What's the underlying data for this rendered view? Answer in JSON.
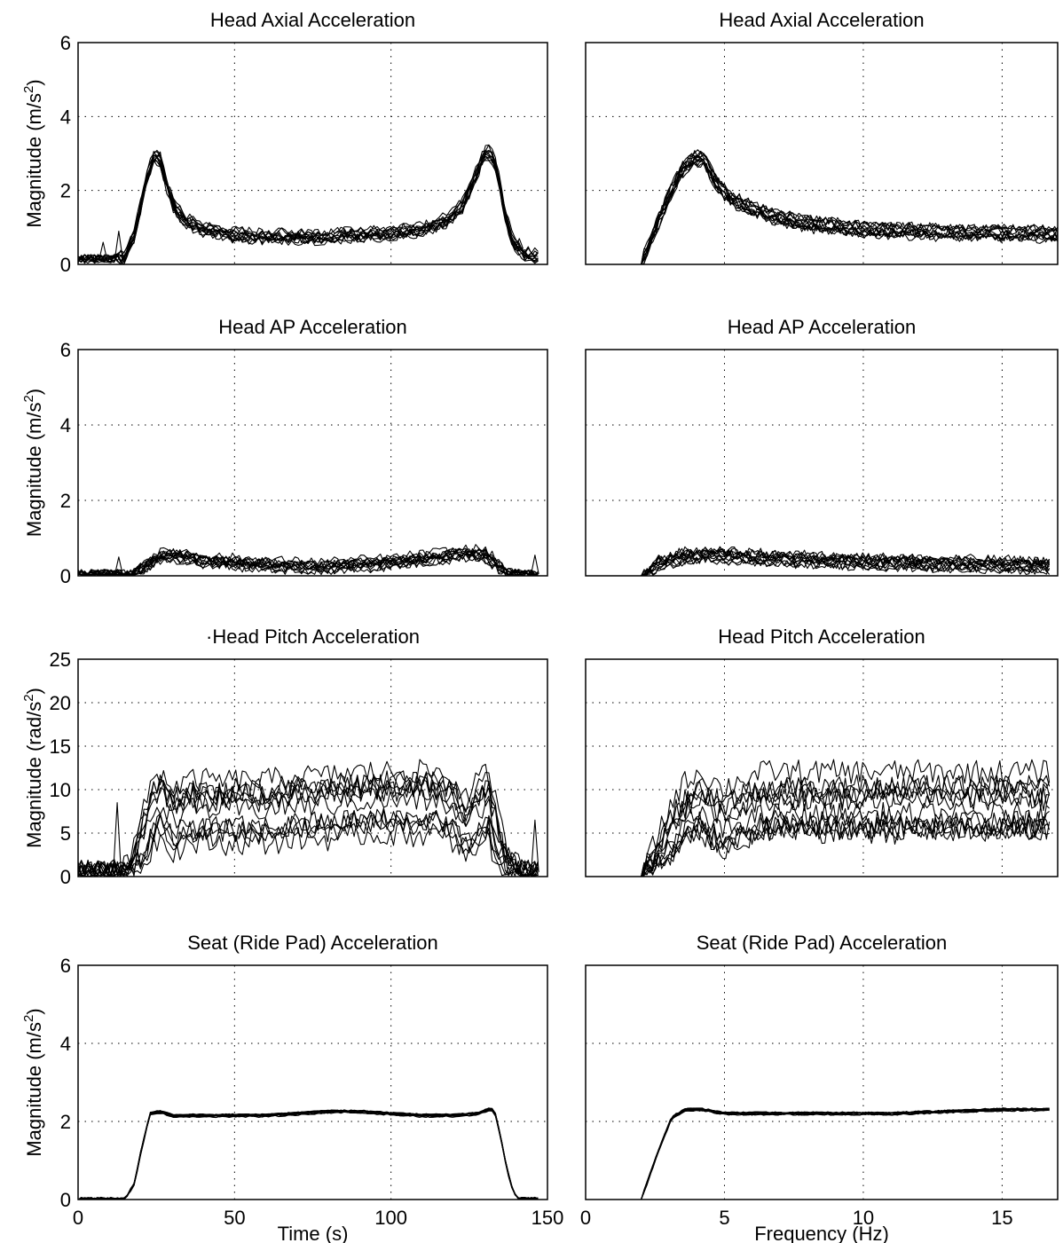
{
  "chart_data": [
    {
      "type": "line",
      "title": "Head Axial Acceleration",
      "ylabel": "Magnitude (m/s",
      "ylabel_sup": "2",
      "ylabel_tail": ")",
      "xlabel": "",
      "xlim": [
        0,
        150
      ],
      "ylim": [
        0,
        6
      ],
      "xticks": [
        0,
        50,
        100,
        150
      ],
      "yticks": [
        0,
        2,
        4,
        6
      ],
      "xtick_labels": [
        "",
        "",
        "",
        ""
      ],
      "ytick_labels": [
        "0",
        "2",
        "4",
        "6"
      ],
      "grid": true,
      "n_traces": 12,
      "x": [
        0,
        5,
        10,
        15,
        18,
        21,
        24,
        26,
        28,
        31,
        35,
        40,
        50,
        60,
        70,
        80,
        90,
        100,
        110,
        118,
        123,
        127,
        130,
        132,
        134,
        136,
        139,
        143,
        147
      ],
      "values": [
        0.15,
        0.15,
        0.15,
        0.2,
        0.8,
        2.0,
        2.9,
        2.9,
        2.2,
        1.5,
        1.15,
        0.95,
        0.8,
        0.75,
        0.75,
        0.75,
        0.8,
        0.85,
        0.95,
        1.2,
        1.6,
        2.4,
        3.0,
        3.0,
        2.5,
        1.5,
        0.6,
        0.25,
        0.2
      ],
      "spikes": [
        {
          "x": 8,
          "y": 0.6
        },
        {
          "x": 13,
          "y": 0.9
        },
        {
          "x": 141,
          "y": 0.7
        }
      ]
    },
    {
      "type": "line",
      "title": "Head Axial Acceleration",
      "ylabel": "",
      "xlabel": "",
      "xlim": [
        0,
        17
      ],
      "ylim": [
        0,
        6
      ],
      "xticks": [
        0,
        5,
        10,
        15
      ],
      "yticks": [
        0,
        2,
        4,
        6
      ],
      "xtick_labels": [
        "",
        "",
        "",
        ""
      ],
      "ytick_labels": [
        "",
        "",
        "",
        ""
      ],
      "grid": true,
      "n_traces": 12,
      "x": [
        2,
        2.8,
        3.4,
        3.9,
        4.3,
        4.7,
        5.2,
        6,
        7,
        8,
        10,
        12,
        14,
        16,
        17
      ],
      "values": [
        0,
        1.5,
        2.5,
        2.9,
        2.8,
        2.2,
        1.8,
        1.5,
        1.25,
        1.1,
        0.95,
        0.9,
        0.85,
        0.85,
        0.8
      ]
    },
    {
      "type": "line",
      "title": "Head AP Acceleration",
      "ylabel": "Magnitude (m/s",
      "ylabel_sup": "2",
      "ylabel_tail": ")",
      "xlabel": "",
      "xlim": [
        0,
        150
      ],
      "ylim": [
        0,
        6
      ],
      "xticks": [
        0,
        50,
        100,
        150
      ],
      "yticks": [
        0,
        2,
        4,
        6
      ],
      "xtick_labels": [
        "",
        "",
        "",
        ""
      ],
      "ytick_labels": [
        "0",
        "2",
        "4",
        "6"
      ],
      "grid": true,
      "n_traces": 12,
      "x": [
        0,
        10,
        17,
        21,
        25,
        30,
        35,
        40,
        50,
        60,
        70,
        80,
        90,
        100,
        110,
        120,
        126,
        130,
        133,
        137,
        142,
        147
      ],
      "values": [
        0.05,
        0.05,
        0.05,
        0.25,
        0.45,
        0.55,
        0.5,
        0.4,
        0.35,
        0.3,
        0.25,
        0.25,
        0.3,
        0.35,
        0.45,
        0.55,
        0.6,
        0.55,
        0.35,
        0.1,
        0.05,
        0.05
      ],
      "spikes": [
        {
          "x": 13,
          "y": 0.5
        },
        {
          "x": 146,
          "y": 0.55
        }
      ]
    },
    {
      "type": "line",
      "title": "Head AP Acceleration",
      "ylabel": "",
      "xlabel": "",
      "xlim": [
        0,
        17
      ],
      "ylim": [
        0,
        6
      ],
      "xticks": [
        0,
        5,
        10,
        15
      ],
      "yticks": [
        0,
        2,
        4,
        6
      ],
      "xtick_labels": [
        "",
        "",
        "",
        ""
      ],
      "ytick_labels": [
        "",
        "",
        "",
        ""
      ],
      "grid": true,
      "n_traces": 12,
      "x": [
        2,
        2.6,
        3.2,
        3.8,
        4.5,
        5.5,
        7,
        9,
        11,
        13,
        15,
        16.7
      ],
      "values": [
        0,
        0.3,
        0.45,
        0.55,
        0.55,
        0.5,
        0.45,
        0.4,
        0.35,
        0.32,
        0.3,
        0.25
      ]
    },
    {
      "type": "line",
      "title": "·Head Pitch Acceleration",
      "ylabel": "Magnitude (rad/s",
      "ylabel_sup": "2",
      "ylabel_tail": ")",
      "xlabel": "",
      "xlim": [
        0,
        150
      ],
      "ylim": [
        0,
        25
      ],
      "xticks": [
        0,
        50,
        100,
        150
      ],
      "yticks": [
        0,
        5,
        10,
        15,
        20,
        25
      ],
      "xtick_labels": [
        "",
        "",
        "",
        ""
      ],
      "ytick_labels": [
        "0",
        "5",
        "10",
        "15",
        "20",
        "25"
      ],
      "grid": true,
      "n_traces": 12,
      "x": [
        0,
        10,
        16,
        20,
        24,
        27,
        30,
        35,
        40,
        50,
        60,
        70,
        80,
        90,
        100,
        110,
        115,
        120,
        124,
        128,
        131,
        134,
        137,
        142,
        147
      ],
      "values": [
        0.5,
        0.5,
        1,
        4,
        8,
        9,
        7,
        8,
        8,
        8,
        8,
        8.5,
        8.5,
        9,
        9,
        9,
        9,
        8,
        6,
        8,
        9,
        5,
        2,
        0.5,
        0.5
      ],
      "spikes": [
        {
          "x": 12.5,
          "y": 8.5
        },
        {
          "x": 146,
          "y": 6.5
        }
      ]
    },
    {
      "type": "line",
      "title": "Head Pitch Acceleration",
      "ylabel": "",
      "xlabel": "",
      "xlim": [
        0,
        17
      ],
      "ylim": [
        0,
        25
      ],
      "xticks": [
        0,
        5,
        10,
        15
      ],
      "yticks": [
        0,
        5,
        10,
        15,
        20,
        25
      ],
      "xtick_labels": [
        "",
        "",
        "",
        ""
      ],
      "ytick_labels": [
        "",
        "",
        "",
        ""
      ],
      "grid": true,
      "n_traces": 12,
      "x": [
        2,
        2.8,
        3.5,
        4,
        4.5,
        5,
        5.5,
        6.5,
        8,
        10,
        12,
        14,
        16,
        16.7
      ],
      "values": [
        0,
        4,
        7,
        8.5,
        7.5,
        6.5,
        7.5,
        8.5,
        8.5,
        8.5,
        8.5,
        8.5,
        8.5,
        8.5
      ]
    },
    {
      "type": "line",
      "title": "Seat (Ride Pad) Acceleration",
      "ylabel": "Magnitude (m/s",
      "ylabel_sup": "2",
      "ylabel_tail": ")",
      "xlabel": "Time (s)",
      "xlim": [
        0,
        150
      ],
      "ylim": [
        0,
        6
      ],
      "xticks": [
        0,
        50,
        100,
        150
      ],
      "yticks": [
        0,
        2,
        4,
        6
      ],
      "xtick_labels": [
        "0",
        "50",
        "100",
        "150"
      ],
      "ytick_labels": [
        "0",
        "2",
        "4",
        "6"
      ],
      "grid": true,
      "n_traces": 12,
      "x": [
        0,
        10,
        15,
        18,
        20,
        23,
        26,
        30,
        40,
        50,
        60,
        70,
        80,
        90,
        100,
        110,
        120,
        128,
        131,
        133,
        135,
        137,
        139,
        141,
        147
      ],
      "values": [
        0,
        0,
        0,
        0.4,
        1.2,
        2.2,
        2.25,
        2.15,
        2.15,
        2.15,
        2.15,
        2.2,
        2.25,
        2.25,
        2.2,
        2.15,
        2.15,
        2.2,
        2.3,
        2.3,
        1.6,
        0.8,
        0.2,
        0,
        0
      ]
    },
    {
      "type": "line",
      "title": "Seat (Ride Pad) Acceleration",
      "ylabel": "",
      "xlabel": "Frequency (Hz)",
      "xlim": [
        0,
        17
      ],
      "ylim": [
        0,
        6
      ],
      "xticks": [
        0,
        5,
        10,
        15
      ],
      "yticks": [
        0,
        2,
        4,
        6
      ],
      "xtick_labels": [
        "0",
        "5",
        "10",
        "15"
      ],
      "ytick_labels": [
        "",
        "",
        "",
        ""
      ],
      "grid": true,
      "n_traces": 12,
      "x": [
        2,
        2.6,
        3.1,
        3.6,
        4.2,
        5,
        7,
        9,
        11,
        13,
        15,
        16.7
      ],
      "values": [
        0,
        1.2,
        2.1,
        2.3,
        2.3,
        2.2,
        2.2,
        2.2,
        2.2,
        2.25,
        2.3,
        2.3
      ]
    }
  ]
}
